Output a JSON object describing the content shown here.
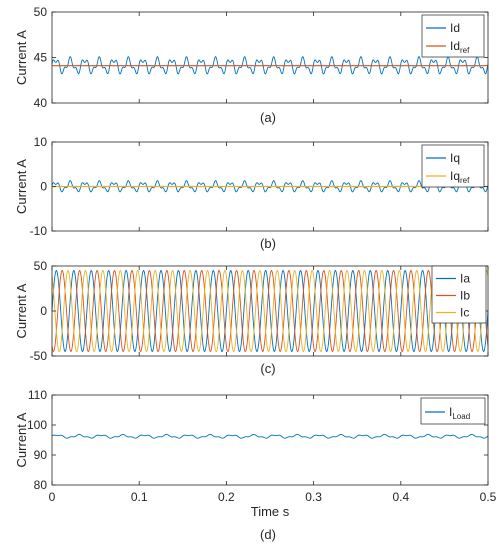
{
  "colors": {
    "blue": "#0072BD",
    "orange": "#D95319",
    "yellow": "#EDB120",
    "axis": "#262626"
  },
  "chart_data": [
    {
      "type": "line",
      "caption": "(a)",
      "ylabel": "Current A",
      "ylim": [
        40,
        50
      ],
      "yticks": [
        "40",
        "45",
        "50"
      ],
      "xlim": [
        0,
        0.5
      ],
      "legend": [
        {
          "main": "Id",
          "sub": ""
        },
        {
          "main": "Id",
          "sub": "ref"
        }
      ],
      "series": [
        {
          "name": "Id",
          "color": "blue",
          "mean": 44.1,
          "ripple": 0.9,
          "freq": 60
        },
        {
          "name": "Idref",
          "color": "orange",
          "mean": 44.1,
          "ripple": 0,
          "freq": 0
        }
      ]
    },
    {
      "type": "line",
      "caption": "(b)",
      "ylabel": "Current A",
      "ylim": [
        -10,
        10
      ],
      "yticks": [
        "-10",
        "0",
        "10"
      ],
      "xlim": [
        0,
        0.5
      ],
      "legend": [
        {
          "main": "Iq",
          "sub": ""
        },
        {
          "main": "Iq",
          "sub": "ref"
        }
      ],
      "series": [
        {
          "name": "Iq",
          "color": "blue",
          "mean": 0,
          "ripple": 1.2,
          "freq": 60
        },
        {
          "name": "Iqref",
          "color": "yellow",
          "mean": 0,
          "ripple": 0,
          "freq": 0
        }
      ]
    },
    {
      "type": "line",
      "caption": "(c)",
      "ylabel": "Current A",
      "ylim": [
        -50,
        50
      ],
      "yticks": [
        "-50",
        "0",
        "50"
      ],
      "xlim": [
        0,
        0.5
      ],
      "legend": [
        {
          "main": "Ia",
          "sub": ""
        },
        {
          "main": "Ib",
          "sub": ""
        },
        {
          "main": "Ic",
          "sub": ""
        }
      ],
      "series": [
        {
          "name": "Ia",
          "color": "blue",
          "amplitude": 45,
          "freq": 50,
          "phase_deg": 0
        },
        {
          "name": "Ib",
          "color": "orange",
          "amplitude": 45,
          "freq": 50,
          "phase_deg": -120
        },
        {
          "name": "Ic",
          "color": "yellow",
          "amplitude": 45,
          "freq": 50,
          "phase_deg": 120
        }
      ]
    },
    {
      "type": "line",
      "caption": "(d)",
      "ylabel": "Current A",
      "xlabel": "Time s",
      "ylim": [
        80,
        110
      ],
      "yticks": [
        "80",
        "90",
        "100",
        "110"
      ],
      "xlim": [
        0,
        0.5
      ],
      "xticks": [
        "0",
        "0.1",
        "0.2",
        "0.3",
        "0.4",
        "0.5"
      ],
      "legend": [
        {
          "main": "I",
          "sub": "Load"
        }
      ],
      "series": [
        {
          "name": "ILoad",
          "color": "blue",
          "mean": 96.2,
          "ripple": 0.6,
          "freq": 40
        }
      ]
    }
  ]
}
